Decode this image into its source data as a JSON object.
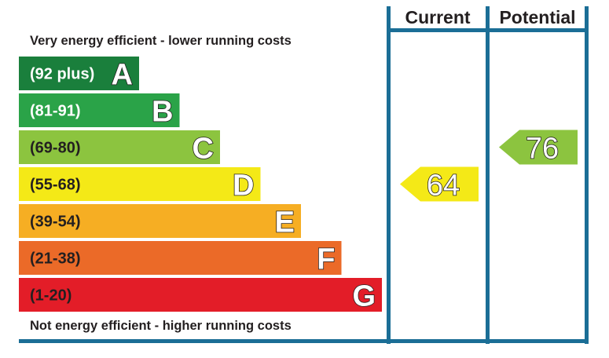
{
  "chart_data": {
    "type": "bar",
    "top_caption": "Very energy efficient - lower running costs",
    "bottom_caption": "Not energy efficient - higher running costs",
    "columns": [
      "Current",
      "Potential"
    ],
    "bands": [
      {
        "letter": "A",
        "range": "(92 plus)",
        "min": 92,
        "max": 100,
        "color": "#1a7f3c",
        "text_color": "#ffffff"
      },
      {
        "letter": "B",
        "range": "(81-91)",
        "min": 81,
        "max": 91,
        "color": "#2aa348",
        "text_color": "#ffffff"
      },
      {
        "letter": "C",
        "range": "(69-80)",
        "min": 69,
        "max": 80,
        "color": "#8cc43f",
        "text_color": "#231f20"
      },
      {
        "letter": "D",
        "range": "(55-68)",
        "min": 55,
        "max": 68,
        "color": "#f4e917",
        "text_color": "#231f20"
      },
      {
        "letter": "E",
        "range": "(39-54)",
        "min": 39,
        "max": 54,
        "color": "#f6ae23",
        "text_color": "#231f20"
      },
      {
        "letter": "F",
        "range": "(21-38)",
        "min": 21,
        "max": 38,
        "color": "#eb6a28",
        "text_color": "#231f20"
      },
      {
        "letter": "G",
        "range": "(1-20)",
        "min": 1,
        "max": 20,
        "color": "#e31d28",
        "text_color": "#231f20"
      }
    ],
    "current": {
      "value": 64,
      "band": "D",
      "label": "64"
    },
    "potential": {
      "value": 76,
      "band": "C",
      "label": "76"
    },
    "frame_color": "#1b6e96"
  }
}
